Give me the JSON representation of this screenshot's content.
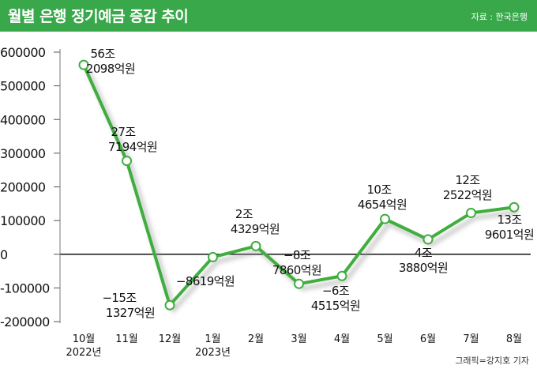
{
  "header": {
    "title": "월별 은행 정기예금 증감 추이",
    "source": "자료 : 한국은행"
  },
  "footer": {
    "credit": "그래픽=강지호 기자"
  },
  "colors": {
    "header_bg": "#39a84a",
    "line": "#3fae3f",
    "point_fill": "#ffffff",
    "zero_line": "#111111"
  },
  "chart_data": {
    "type": "line",
    "title": "월별 은행 정기예금 증감 추이",
    "categories": [
      [
        "10월",
        "2022년"
      ],
      [
        "11월"
      ],
      [
        "12월"
      ],
      [
        "1월",
        "2023년"
      ],
      [
        "2월"
      ],
      [
        "3월"
      ],
      [
        "4월"
      ],
      [
        "5월"
      ],
      [
        "6월"
      ],
      [
        "7월"
      ],
      [
        "8월"
      ]
    ],
    "values": [
      562098,
      277194,
      -151327,
      -8619,
      24329,
      -87860,
      -64515,
      104654,
      43880,
      122522,
      139601
    ],
    "data_labels": [
      [
        "56조",
        "2098억원"
      ],
      [
        "27조",
        "7194억원"
      ],
      [
        "−15조",
        "1327억원"
      ],
      [
        "−8619억원"
      ],
      [
        "2조",
        "4329억원"
      ],
      [
        "−8조",
        "7860억원"
      ],
      [
        "−6조",
        "4515억원"
      ],
      [
        "10조",
        "4654억원"
      ],
      [
        "4조",
        "3880억원"
      ],
      [
        "12조",
        "2522억원"
      ],
      [
        "13조",
        "9601억원"
      ]
    ],
    "y_ticks": [
      "600000",
      "500000",
      "400000",
      "300000",
      "200000",
      "100000",
      "0",
      "-100000",
      "-200000"
    ],
    "ylim": [
      -200000,
      600000
    ],
    "grid": false
  }
}
